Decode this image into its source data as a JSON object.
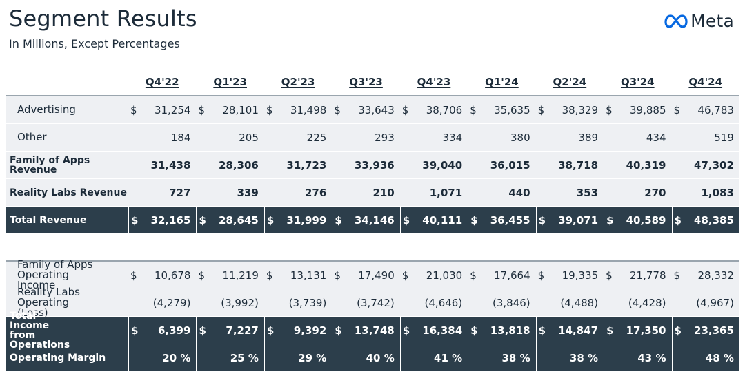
{
  "header": {
    "title": "Segment Results",
    "subtitle": "In Millions, Except Percentages",
    "logo_text": "Meta"
  },
  "columns": [
    "Q4'22",
    "Q1'23",
    "Q2'23",
    "Q3'23",
    "Q4'23",
    "Q1'24",
    "Q2'24",
    "Q3'24",
    "Q4'24"
  ],
  "rows": [
    {
      "label": "Advertising",
      "dollar": true,
      "bold": false,
      "dark": false,
      "indent": true,
      "values": [
        "31,254",
        "28,101",
        "31,498",
        "33,643",
        "38,706",
        "35,635",
        "38,329",
        "39,885",
        "46,783"
      ]
    },
    {
      "label": "Other",
      "dollar": false,
      "bold": false,
      "dark": false,
      "indent": true,
      "values": [
        "184",
        "205",
        "225",
        "293",
        "334",
        "380",
        "389",
        "434",
        "519"
      ]
    },
    {
      "label": "Family of Apps Revenue",
      "dollar": false,
      "bold": true,
      "dark": false,
      "indent": false,
      "values": [
        "31,438",
        "28,306",
        "31,723",
        "33,936",
        "39,040",
        "36,015",
        "38,718",
        "40,319",
        "47,302"
      ]
    },
    {
      "label": "Reality Labs Revenue",
      "dollar": false,
      "bold": true,
      "dark": false,
      "indent": false,
      "values": [
        "727",
        "339",
        "276",
        "210",
        "1,071",
        "440",
        "353",
        "270",
        "1,083"
      ]
    },
    {
      "label": "Total Revenue",
      "dollar": true,
      "bold": true,
      "dark": true,
      "indent": false,
      "values": [
        "32,165",
        "28,645",
        "31,999",
        "34,146",
        "40,111",
        "36,455",
        "39,071",
        "40,589",
        "48,385"
      ]
    }
  ],
  "rows2": [
    {
      "label": "Family of Apps Operating Income",
      "dollar": true,
      "bold": false,
      "dark": false,
      "indent": true,
      "values": [
        "10,678",
        "11,219",
        "13,131",
        "17,490",
        "21,030",
        "17,664",
        "19,335",
        "21,778",
        "28,332"
      ]
    },
    {
      "label": "Reality Labs Operating (Loss)",
      "dollar": false,
      "bold": false,
      "dark": false,
      "indent": true,
      "values": [
        "(4,279)",
        "(3,992)",
        "(3,739)",
        "(3,742)",
        "(4,646)",
        "(3,846)",
        "(4,488)",
        "(4,428)",
        "(4,967)"
      ]
    },
    {
      "label": "Total Income from Operations",
      "dollar": true,
      "bold": true,
      "dark": true,
      "indent": false,
      "values": [
        "6,399",
        "7,227",
        "9,392",
        "13,748",
        "16,384",
        "13,818",
        "14,847",
        "17,350",
        "23,365"
      ]
    },
    {
      "label": "Operating Margin",
      "dollar": false,
      "bold": true,
      "dark": true,
      "indent": false,
      "values": [
        "20 %",
        "25 %",
        "29 %",
        "40 %",
        "41 %",
        "38 %",
        "38 %",
        "43 %",
        "48 %"
      ]
    }
  ],
  "colors": {
    "dark_row": "#2c3e4b",
    "light_row": "#eef0f3",
    "meta_blue": "#0668e1"
  }
}
